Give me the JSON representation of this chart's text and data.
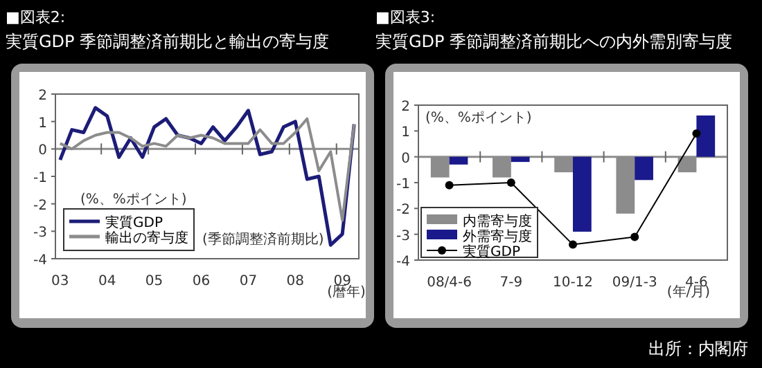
{
  "chart_data": [
    {
      "type": "line",
      "title": "■図表2:",
      "subtitle": "実質GDP 季節調整済前期比と輸出の寄与度",
      "x": [
        2003,
        2003.25,
        2003.5,
        2003.75,
        2004,
        2004.25,
        2004.5,
        2004.75,
        2005,
        2005.25,
        2005.5,
        2005.75,
        2006,
        2006.25,
        2006.5,
        2006.75,
        2007,
        2007.25,
        2007.5,
        2007.75,
        2008,
        2008.25,
        2008.5,
        2008.75,
        2009,
        2009.25
      ],
      "xlim": [
        2002.9,
        2009.35
      ],
      "xticks": [
        {
          "value": 2003,
          "label": "03"
        },
        {
          "value": 2004,
          "label": "04"
        },
        {
          "value": 2005,
          "label": "05"
        },
        {
          "value": 2006,
          "label": "06"
        },
        {
          "value": 2007,
          "label": "07"
        },
        {
          "value": 2008,
          "label": "08"
        },
        {
          "value": 2009,
          "label": "09"
        },
        {
          "value": 2003.875,
          "label": null
        },
        {
          "value": 2004.875,
          "label": null
        },
        {
          "value": 2005.875,
          "label": null
        },
        {
          "value": 2006.875,
          "label": null
        },
        {
          "value": 2007.875,
          "label": null
        },
        {
          "value": 2008.875,
          "label": null
        }
      ],
      "ylim": [
        -4,
        2
      ],
      "yticks": [
        -4,
        -3,
        -2,
        -1,
        0,
        1,
        2
      ],
      "series": [
        {
          "name": "実質GDP",
          "color": "#1c1c78",
          "values": [
            -0.4,
            0.7,
            0.6,
            1.5,
            1.2,
            -0.3,
            0.4,
            -0.3,
            0.8,
            1.1,
            0.5,
            0.4,
            0.2,
            0.8,
            0.3,
            0.8,
            1.4,
            -0.2,
            -0.1,
            0.8,
            1.0,
            -1.1,
            -1.0,
            -3.5,
            -3.1,
            0.9
          ]
        },
        {
          "name": "輸出の寄与度",
          "color": "#8c8c8c",
          "values": [
            0.2,
            0.0,
            0.3,
            0.5,
            0.6,
            0.6,
            0.4,
            0.1,
            0.2,
            0.1,
            0.5,
            0.4,
            0.5,
            0.4,
            0.2,
            0.2,
            0.2,
            0.7,
            0.2,
            0.2,
            0.6,
            1.1,
            -0.8,
            -0.1,
            -2.6,
            0.9
          ]
        }
      ],
      "ref_lines": [
        {
          "axis": "y",
          "value": 0,
          "color": "#8c8c8c"
        }
      ],
      "legend": "bottom left",
      "grid": false,
      "annotations": [
        "(%、%ポイント)",
        "(季節調整済前期比)",
        "(暦年)"
      ]
    },
    {
      "type": "bar",
      "title": "■図表3:",
      "subtitle": "実質GDP 季節調整済前期比への内外需別寄与度",
      "categories": [
        "08/4-6",
        "7-9",
        "10-12",
        "09/1-3",
        "4-6"
      ],
      "ylim": [
        -4,
        2
      ],
      "yticks": [
        -4,
        -3,
        -2,
        -1,
        0,
        1,
        2
      ],
      "series": [
        {
          "name": "内需寄与度",
          "color": "#8c8c8c",
          "values": [
            -0.8,
            -0.8,
            -0.6,
            -2.2,
            -0.6
          ]
        },
        {
          "name": "外需寄与度",
          "color": "#1a1a8c",
          "values": [
            -0.3,
            -0.2,
            -2.9,
            -0.9,
            1.6
          ]
        },
        {
          "name": "実質GDP",
          "type": "line",
          "marker": "circle",
          "color": "#000000",
          "values": [
            -1.1,
            -1.0,
            -3.4,
            -3.1,
            0.9
          ]
        }
      ],
      "ref_lines": [
        {
          "axis": "y",
          "value": 0,
          "color": "#8c8c8c"
        }
      ],
      "legend": "bottom left",
      "grid": false,
      "annotations": [
        "(%、%ポイント)",
        "(年/月)",
        "出所：内閣府"
      ]
    }
  ]
}
